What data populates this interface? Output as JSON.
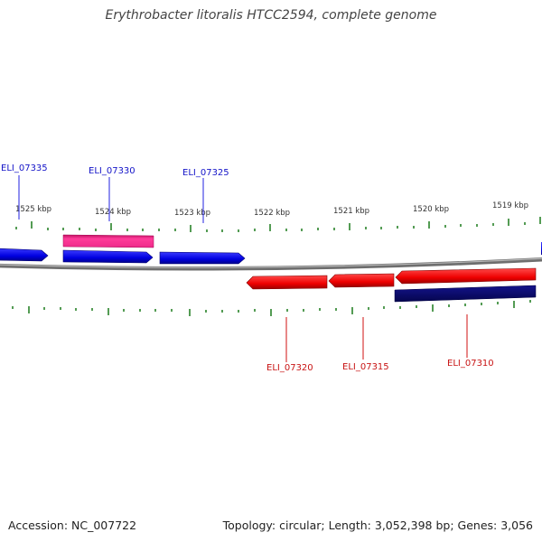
{
  "title": "Erythrobacter litoralis HTCC2594, complete genome",
  "footer": {
    "accession": "Accession: NC_007722",
    "topology": "Topology: circular; Length: 3,052,398 bp; Genes: 3,056"
  },
  "colors": {
    "forward_gene": "#1010e8",
    "reverse_gene": "#ee1010",
    "forward_extra": "#ee2b8a",
    "reverse_extra": "#0a0a78",
    "backbone": "#8a8a8a",
    "tick": "#1a7a1a"
  },
  "scale_labels": [
    "1525 kbp",
    "1524 kbp",
    "1523 kbp",
    "1522 kbp",
    "1521 kbp",
    "1520 kbp",
    "1519 kbp"
  ],
  "genes": [
    {
      "name": "ELI_07335",
      "strand": "forward"
    },
    {
      "name": "ELI_07330",
      "strand": "forward"
    },
    {
      "name": "ELI_07325",
      "strand": "forward"
    },
    {
      "name": "ELI_07320",
      "strand": "reverse"
    },
    {
      "name": "ELI_07315",
      "strand": "reverse"
    },
    {
      "name": "ELI_07310",
      "strand": "reverse"
    }
  ]
}
